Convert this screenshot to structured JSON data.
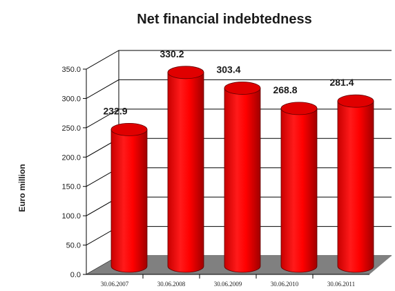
{
  "chart_data": {
    "type": "bar",
    "title": "Net financial indebtedness",
    "ylabel": "Euro million",
    "xlabel": "",
    "categories": [
      "30.06.2007",
      "30.06.2008",
      "30.06.2009",
      "30.06.2010",
      "30.06.2011"
    ],
    "values": [
      232.9,
      330.2,
      303.4,
      268.8,
      281.4
    ],
    "value_labels": [
      "232.9",
      "330.2",
      "303.4",
      "268.8",
      "281.4"
    ],
    "ylim": [
      0,
      350
    ],
    "yticks": [
      "0.0",
      "50.0",
      "100.0",
      "150.0",
      "200.0",
      "250.0",
      "300.0",
      "350.0"
    ],
    "grid": true,
    "style": "3d-cylinder",
    "colors": {
      "bar": "#ff0000",
      "bar_dark": "#b00000",
      "floor": "#808080",
      "grid": "#000000"
    }
  }
}
